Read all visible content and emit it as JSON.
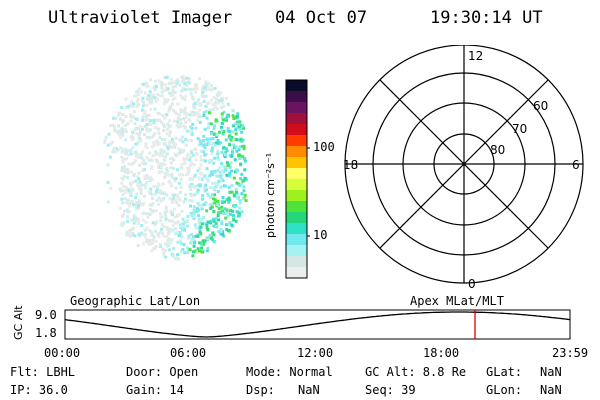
{
  "header": {
    "title": "Ultraviolet Imager",
    "date": "04 Oct 07",
    "time": "19:30:14 UT"
  },
  "colorbar": {
    "label": "photon cm⁻²s⁻¹",
    "ticks": [
      "100",
      "10"
    ],
    "colors": [
      "#0a0a2a",
      "#3a0e46",
      "#6a1360",
      "#a0103c",
      "#d00d1a",
      "#ff3b00",
      "#ff8c00",
      "#ffc400",
      "#ffff66",
      "#d6ff3a",
      "#9ef01f",
      "#4fe33a",
      "#25d57a",
      "#2ee0c4",
      "#6fe9ee",
      "#a5f2f2",
      "#d6e6e4",
      "#eaeeed"
    ]
  },
  "polar": {
    "lat_labels": [
      "60",
      "70",
      "80"
    ],
    "mlt_labels": {
      "top": "12",
      "bottom": "0",
      "left": "18",
      "right": "6"
    }
  },
  "timeline": {
    "left_label": "Geographic Lat/Lon",
    "right_label": "Apex MLat/MLT",
    "axis_title": "GC Alt",
    "y_ticks": [
      "9.0",
      "1.8"
    ],
    "x_ticks": [
      "00:00",
      "06:00",
      "12:00",
      "18:00",
      "23:59"
    ],
    "marker_color": "#e00000"
  },
  "status": {
    "flt": "Flt: LBHL",
    "ip": "IP: 36.0",
    "door": "Door: Open",
    "gain": "Gain: 14",
    "mode": "Mode: Normal",
    "dsp_label": "Dsp:",
    "dsp_value": "NaN",
    "gcalt": "GC Alt: 8.8 Re",
    "seq": "Seq: 39",
    "glat_label": "GLat:",
    "glat_value": "NaN",
    "glon_label": "GLon:",
    "glon_value": "NaN"
  }
}
